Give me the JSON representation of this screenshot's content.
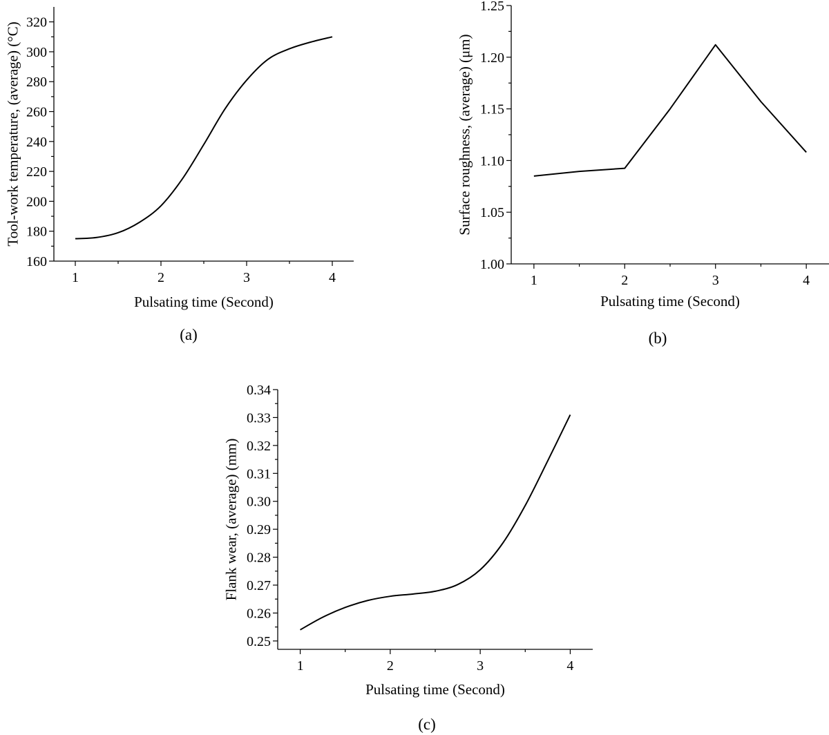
{
  "chart_data": [
    {
      "type": "line",
      "panel_label": "(a)",
      "xlabel": "Pulsating time (Second)",
      "ylabel": "Tool-work temperature, (average) (°C)",
      "xlim": [
        0.75,
        4.25
      ],
      "ylim": [
        160,
        330
      ],
      "xticks": [
        "1",
        "2",
        "3",
        "4"
      ],
      "xtick_values": [
        1,
        2,
        3,
        4
      ],
      "yticks": [
        "160",
        "180",
        "200",
        "220",
        "240",
        "260",
        "280",
        "300",
        "320"
      ],
      "ytick_values": [
        160,
        180,
        200,
        220,
        240,
        260,
        280,
        300,
        320
      ],
      "grid": false,
      "smooth": true,
      "series": [
        {
          "x": [
            1.0,
            1.25,
            1.5,
            1.75,
            2.0,
            2.25,
            2.5,
            2.75,
            3.0,
            3.25,
            3.5,
            3.75,
            4.0
          ],
          "values": [
            175.0,
            175.8,
            179.0,
            186.0,
            197.0,
            215.0,
            238.0,
            262.0,
            281.0,
            295.0,
            302.0,
            306.5,
            310.0
          ]
        }
      ]
    },
    {
      "type": "line",
      "panel_label": "(b)",
      "xlabel": "Pulsating time (Second)",
      "ylabel": "Surface roughness, (average) (μm)",
      "xlim": [
        0.75,
        4.25
      ],
      "ylim": [
        1.0,
        1.25
      ],
      "xticks": [
        "1",
        "2",
        "3",
        "4"
      ],
      "xtick_values": [
        1,
        2,
        3,
        4
      ],
      "yticks": [
        "1.00",
        "1.05",
        "1.10",
        "1.15",
        "1.20",
        "1.25"
      ],
      "ytick_values": [
        1.0,
        1.05,
        1.1,
        1.15,
        1.2,
        1.25
      ],
      "grid": false,
      "smooth": false,
      "series": [
        {
          "x": [
            1.0,
            1.5,
            2.0,
            2.5,
            3.0,
            3.5,
            4.0
          ],
          "values": [
            1.085,
            1.0895,
            1.0925,
            1.15,
            1.212,
            1.157,
            1.108
          ]
        }
      ]
    },
    {
      "type": "line",
      "panel_label": "(c)",
      "xlabel": "Pulsating time (Second)",
      "ylabel": "Flank wear, (average) (mm)",
      "xlim": [
        0.75,
        4.25
      ],
      "ylim": [
        0.247,
        0.34
      ],
      "xticks": [
        "1",
        "2",
        "3",
        "4"
      ],
      "xtick_values": [
        1,
        2,
        3,
        4
      ],
      "yticks": [
        "0.25",
        "0.26",
        "0.27",
        "0.28",
        "0.29",
        "0.30",
        "0.31",
        "0.32",
        "0.33",
        "0.34"
      ],
      "ytick_values": [
        0.25,
        0.26,
        0.27,
        0.28,
        0.29,
        0.3,
        0.31,
        0.32,
        0.33,
        0.34
      ],
      "grid": false,
      "smooth": true,
      "series": [
        {
          "x": [
            1.0,
            1.25,
            1.5,
            1.75,
            2.0,
            2.25,
            2.5,
            2.75,
            3.0,
            3.25,
            3.5,
            3.75,
            4.0
          ],
          "values": [
            0.254,
            0.2585,
            0.262,
            0.2645,
            0.266,
            0.2668,
            0.2678,
            0.2702,
            0.2755,
            0.285,
            0.2985,
            0.3145,
            0.331
          ]
        }
      ]
    }
  ]
}
